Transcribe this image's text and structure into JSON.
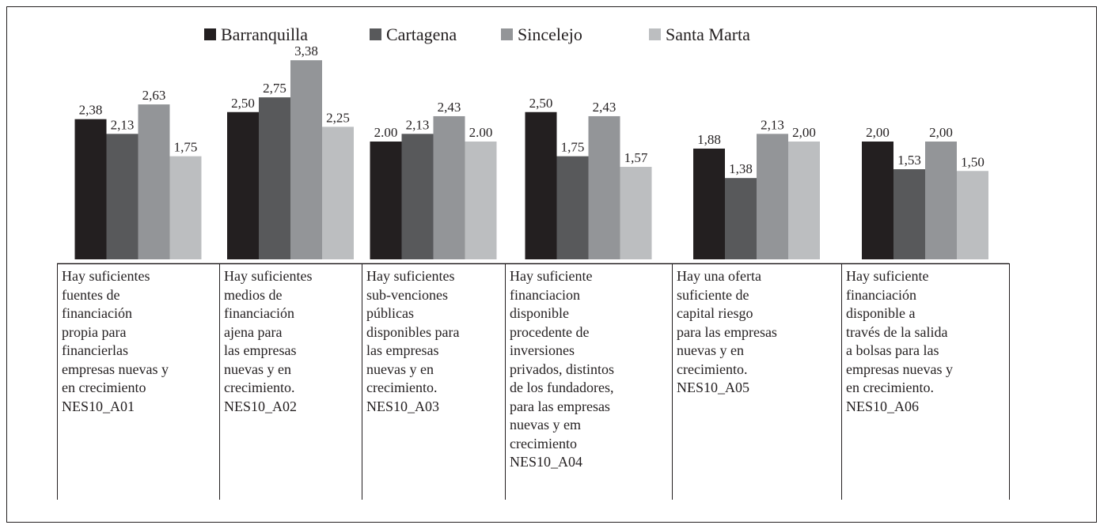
{
  "chart_data": {
    "type": "bar",
    "categories": [
      "Hay suficientes\nfuentes de\nfinanciación\npropia para\nfinancierlas\nempresas nuevas y\nen crecimiento\nNES10_A01",
      "Hay suficientes\nmedios de\nfinanciación\najena para\nlas empresas\nnuevas y en\ncrecimiento.\nNES10_A02",
      "Hay suficientes\nsub-venciones\npúblicas\ndisponibles para\nlas empresas\nnuevas y en\ncrecimiento.\nNES10_A03",
      "Hay suficiente\nfinanciacion\ndisponible\nprocedente de\ninversiones\nprivados, distintos\nde los fundadores,\npara las empresas\nnuevas y em\ncrecimiento\nNES10_A04",
      "Hay una oferta\nsuficiente de\ncapital riesgo\npara las empresas\nnuevas y en\ncrecimiento.\nNES10_A05",
      "Hay suficiente\nfinanciación\ndisponible a\ntravés de la salida\na bolsas para las\nempresas nuevas y\nen crecimiento.\nNES10_A06"
    ],
    "series": [
      {
        "name": "Barranquilla",
        "color": "#231f20",
        "values": [
          2.38,
          2.5,
          2.0,
          2.5,
          1.88,
          2.0
        ],
        "value_labels": [
          "2,38",
          "2,50",
          "2.00",
          "2,50",
          "1,88",
          "2,00"
        ]
      },
      {
        "name": "Cartagena",
        "color": "#58595b",
        "values": [
          2.13,
          2.75,
          2.13,
          1.75,
          1.38,
          1.53
        ],
        "value_labels": [
          "2,13",
          "2,75",
          "2,13",
          "1,75",
          "1,38",
          "1,53"
        ]
      },
      {
        "name": "Sincelejo",
        "color": "#939598",
        "values": [
          2.63,
          3.38,
          2.43,
          2.43,
          2.13,
          2.0
        ],
        "value_labels": [
          "2,63",
          "3,38",
          "2,43",
          "2,43",
          "2,13",
          "2,00"
        ]
      },
      {
        "name": "Santa Marta",
        "color": "#bcbec0",
        "values": [
          1.75,
          2.25,
          2.0,
          1.57,
          2.0,
          1.5
        ],
        "value_labels": [
          "1,75",
          "2,25",
          "2.00",
          "1,57",
          "2,00",
          "1,50"
        ]
      }
    ],
    "legend": "top"
  }
}
